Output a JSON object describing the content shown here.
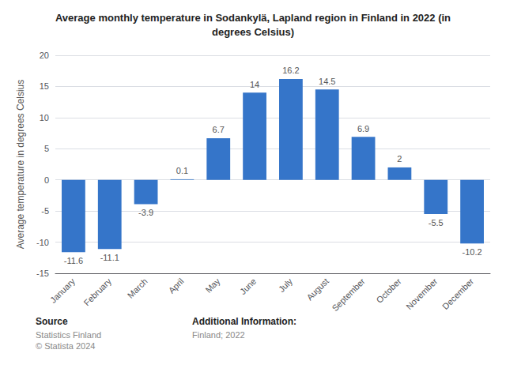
{
  "chart_data": {
    "type": "bar",
    "title": "Average monthly temperature in Sodankylä, Lapland region in Finland in 2022 (in\ndegrees Celsius)",
    "ylabel": "Average temperature in degrees Celsius",
    "categories": [
      "January",
      "February",
      "March",
      "April",
      "May",
      "June",
      "July",
      "August",
      "September",
      "October",
      "November",
      "December"
    ],
    "values": [
      -11.6,
      -11.1,
      -3.9,
      0.1,
      6.7,
      14.0,
      16.2,
      14.5,
      6.9,
      2.0,
      -5.5,
      -10.2
    ],
    "color": "#3575c9",
    "ylim": [
      -15,
      20
    ],
    "yticks": [
      -15,
      -10,
      -5,
      0,
      5,
      10,
      15,
      20
    ],
    "grid": true,
    "data_labels": true,
    "annotations": [
      "Source",
      "Statistics Finland\n© Statista 2024",
      "Additional Information:",
      "Finland; 2022"
    ]
  }
}
